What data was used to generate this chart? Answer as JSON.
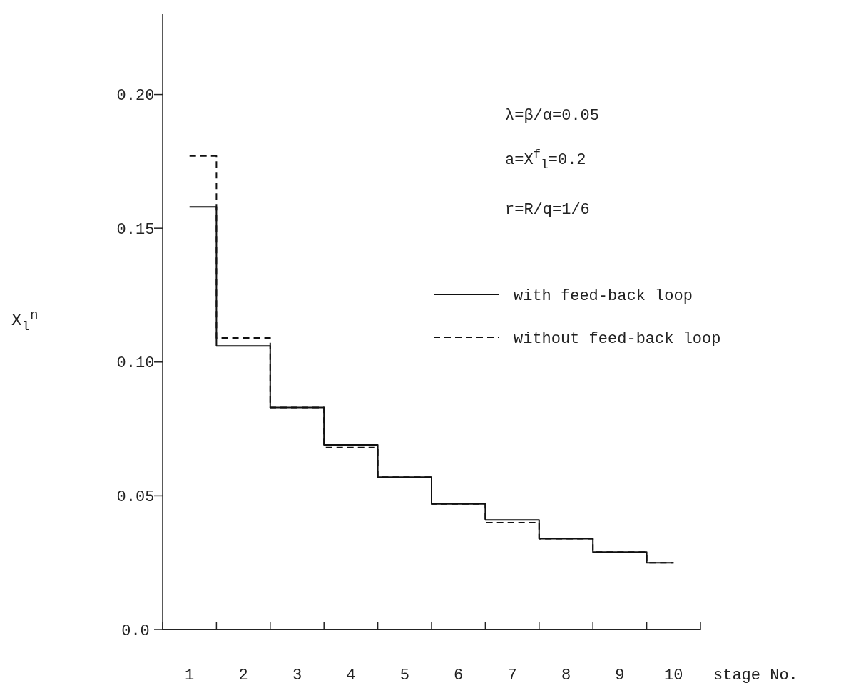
{
  "chart_data": {
    "type": "step",
    "xlabel": "stage No.",
    "ylabel": "X$_{l}$$^{n}$",
    "categories": [
      "1",
      "2",
      "3",
      "4",
      "5",
      "6",
      "7",
      "8",
      "9",
      "10"
    ],
    "series": [
      {
        "name": "with feed-back loop",
        "color": "#111111",
        "line_style": "solid",
        "values": [
          0.158,
          0.106,
          0.083,
          0.069,
          0.057,
          0.047,
          0.041,
          0.034,
          0.029,
          0.025
        ]
      },
      {
        "name": "without feed-back loop",
        "color": "#111111",
        "line_style": "dashed",
        "values": [
          0.177,
          0.109,
          0.083,
          0.068,
          0.057,
          0.047,
          0.04,
          0.034,
          0.029,
          0.025
        ]
      }
    ],
    "ylim": [
      0,
      0.23
    ],
    "yticks": [
      {
        "value": 0,
        "label": "0.0"
      },
      0.05,
      {
        "value": 0.1,
        "label": "0.10"
      },
      0.15,
      {
        "value": 0.2,
        "label": "0.20"
      }
    ],
    "annotations": [
      "λ=β/α=0.05",
      "a=X$^{f}$$_{l}$=0.2",
      "r=R/q=1/6"
    ],
    "legend": "right",
    "grid": false
  }
}
